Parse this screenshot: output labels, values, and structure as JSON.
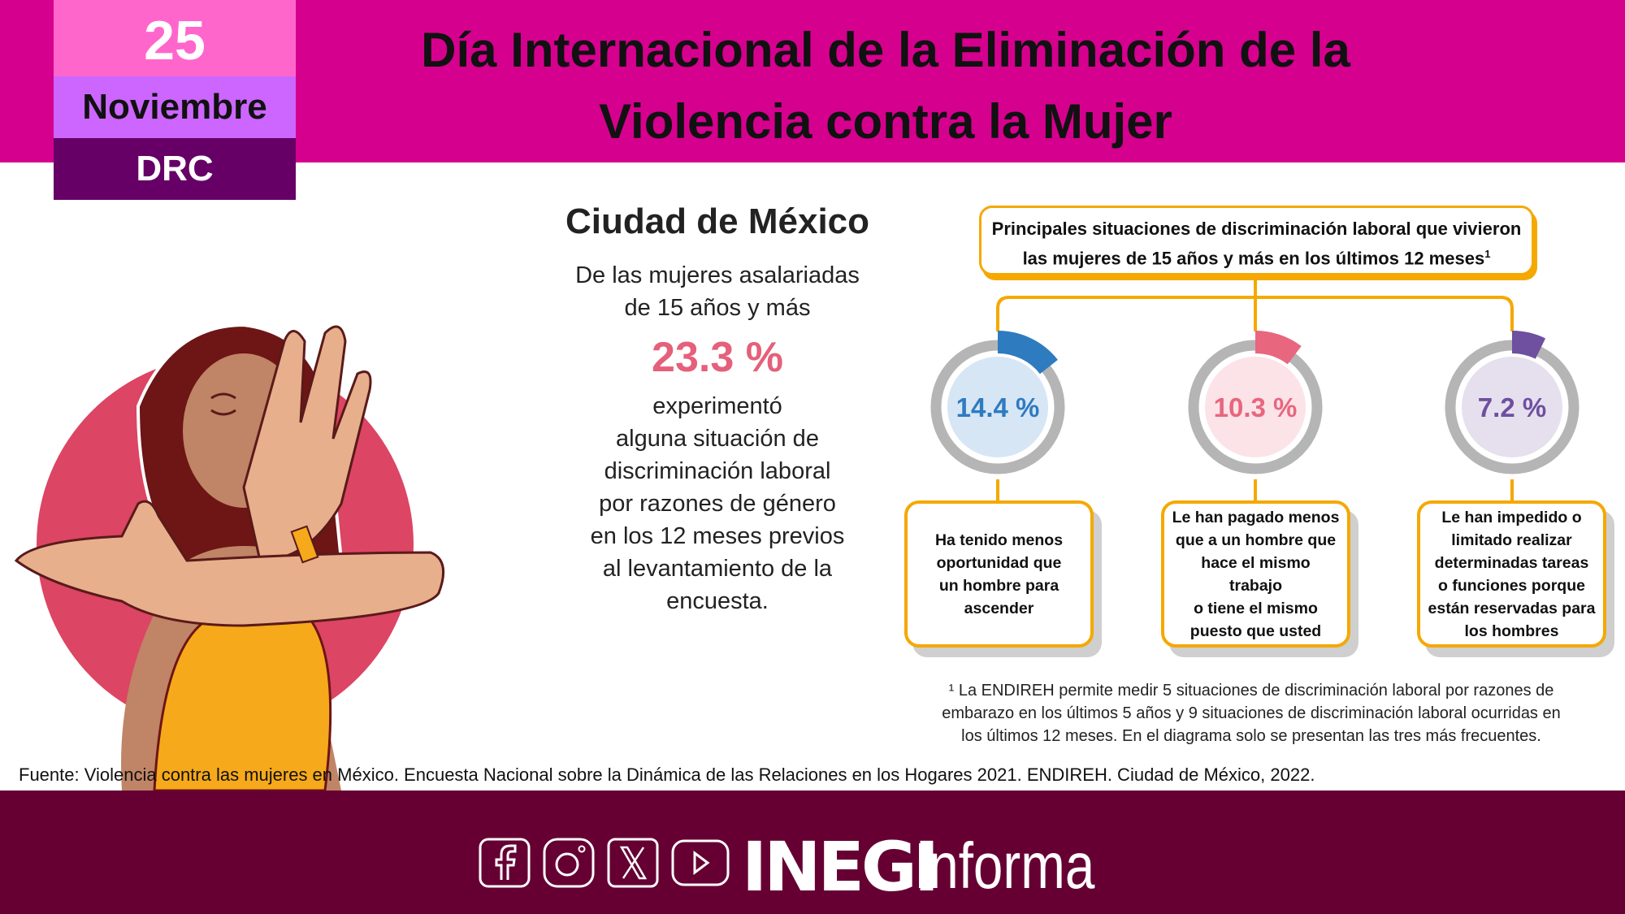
{
  "header": {
    "day": "25",
    "month": "Noviembre",
    "tag": "DRC",
    "title_line1": "Día Internacional de la Eliminación de la",
    "title_line2": "Violencia contra la Mujer",
    "background": "#D6008F"
  },
  "summary": {
    "city": "Ciudad de México",
    "intro": [
      "De las mujeres asalariadas",
      "de 15 años y más"
    ],
    "value": "23.3 %",
    "text": [
      "experimentó",
      "alguna situación de",
      "discriminación laboral",
      "por razones de género",
      "en los 12 meses previos",
      "al levantamiento de la",
      "encuesta."
    ]
  },
  "diagram": {
    "title_line1": "Principales situaciones de discriminación laboral que vivieron",
    "title_line2": "las mujeres de 15 años y más en los últimos 12 meses",
    "title_sup": "1",
    "items": [
      {
        "value": "14.4 %",
        "percent": 14.4,
        "color": "#2E7BC0",
        "fill": "#D6E6F5",
        "lines": [
          "Ha tenido menos",
          "oportunidad que",
          "un hombre para",
          "ascender"
        ]
      },
      {
        "value": "10.3 %",
        "percent": 10.3,
        "color": "#E8667E",
        "fill": "#FBE3E7",
        "lines": [
          "Le han pagado menos",
          "que a un hombre que",
          "hace el mismo",
          "trabajo",
          "o tiene el mismo",
          "puesto que usted"
        ]
      },
      {
        "value": "7.2 %",
        "percent": 7.2,
        "color": "#6E4FA0",
        "fill": "#E6E0EE",
        "lines": [
          "Le han impedido o",
          "limitado realizar",
          "determinadas tareas",
          "o funciones porque",
          "están reservadas para",
          "los hombres"
        ]
      }
    ]
  },
  "footnote": [
    "¹ La ENDIREH permite medir 5 situaciones de discriminación laboral por razones de",
    "embarazo en los últimos 5 años y 9 situaciones de discriminación laboral ocurridas en",
    "los últimos 12 meses. En el diagrama solo se presentan las tres más frecuentes."
  ],
  "source": "Fuente: Violencia contra las mujeres en México. Encuesta Nacional sobre la Dinámica de las Relaciones en los Hogares 2021. ENDIREH. Ciudad de México, 2022.",
  "footer": {
    "social": [
      "facebook-icon",
      "instagram-icon",
      "x-icon",
      "youtube-icon"
    ],
    "logo_bold": "INEGI",
    "logo_light": "Informa",
    "background": "#660033"
  }
}
